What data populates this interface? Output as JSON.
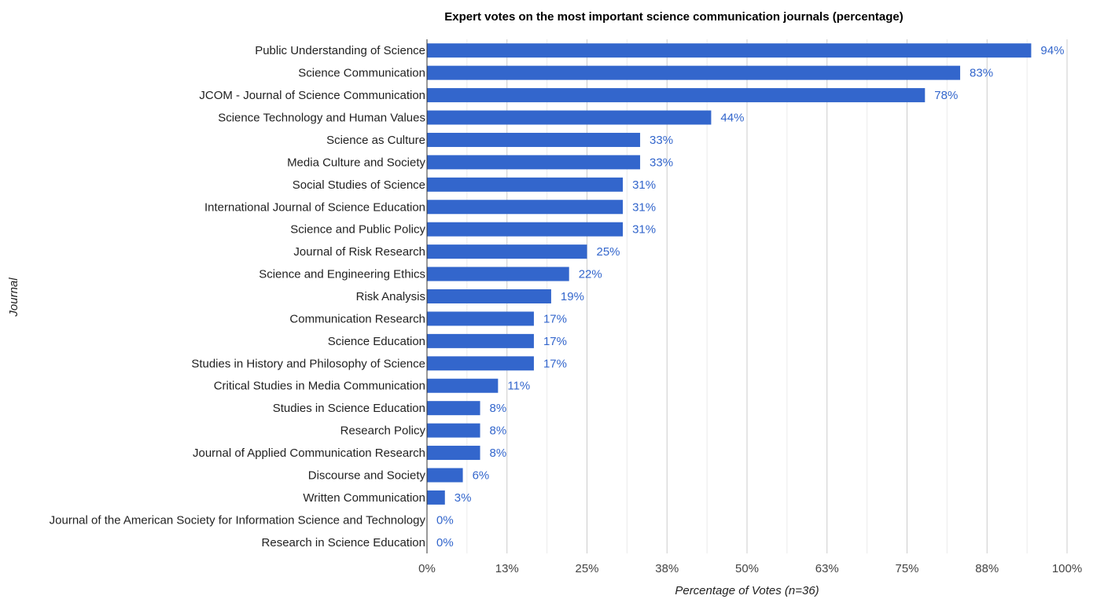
{
  "chart_data": {
    "type": "bar",
    "orientation": "horizontal",
    "title": "Expert votes on the most important science communication journals (percentage)",
    "xlabel": "Percentage of Votes (n=36)",
    "ylabel": "Journal",
    "xlim": [
      0,
      100
    ],
    "x_ticks": [
      "0%",
      "13%",
      "25%",
      "38%",
      "50%",
      "63%",
      "75%",
      "88%",
      "100%"
    ],
    "grid": true,
    "legend": "none",
    "bar_color": "#3366cc",
    "label_color": "#3366cc",
    "categories": [
      "Public Understanding of Science",
      "Science Communication",
      "JCOM - Journal of Science Communication",
      "Science Technology and Human Values",
      "Science as Culture",
      "Media Culture and Society",
      "Social Studies of Science",
      "International Journal of Science Education",
      "Science and Public Policy",
      "Journal of Risk Research",
      "Science and Engineering Ethics",
      "Risk Analysis",
      "Communication Research",
      "Science Education",
      "Studies in History and Philosophy of Science",
      "Critical Studies in Media Communication",
      "Studies in Science Education",
      "Research Policy",
      "Journal of Applied Communication Research",
      "Discourse and Society",
      "Written Communication",
      "Journal of the American Society for Information Science and Technology",
      "Research in Science Education"
    ],
    "values": [
      94.4,
      83.3,
      77.8,
      44.4,
      33.3,
      33.3,
      30.6,
      30.6,
      30.6,
      25.0,
      22.2,
      19.4,
      16.7,
      16.7,
      16.7,
      11.1,
      8.3,
      8.3,
      8.3,
      5.6,
      2.8,
      0,
      0
    ],
    "value_labels": [
      "94%",
      "83%",
      "78%",
      "44%",
      "33%",
      "33%",
      "31%",
      "31%",
      "31%",
      "25%",
      "22%",
      "19%",
      "17%",
      "17%",
      "17%",
      "11%",
      "8%",
      "8%",
      "8%",
      "6%",
      "3%",
      "0%",
      "0%"
    ]
  }
}
